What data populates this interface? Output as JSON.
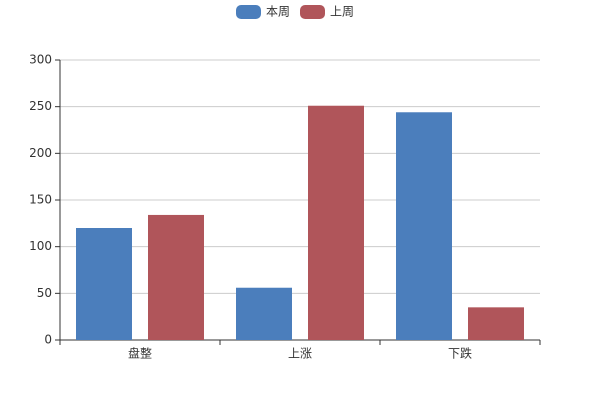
{
  "chart_data": {
    "type": "bar",
    "categories": [
      "盘整",
      "上涨",
      "下跌"
    ],
    "series": [
      {
        "name": "本周",
        "color": "#4b7ebc",
        "values": [
          120,
          56,
          244
        ]
      },
      {
        "name": "上周",
        "color": "#b0555a",
        "values": [
          134,
          251,
          35
        ]
      }
    ],
    "ylim": [
      0,
      300
    ],
    "yticks": [
      0,
      50,
      100,
      150,
      200,
      250,
      300
    ],
    "grid": true,
    "legend": "top"
  }
}
